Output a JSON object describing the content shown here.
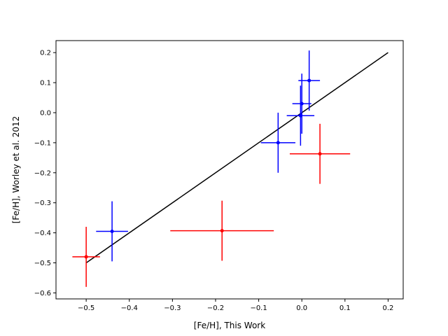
{
  "chart_data": {
    "type": "scatter",
    "title": "",
    "xlabel": "[Fe/H], This Work",
    "ylabel": "[Fe/H], Worley et al. 2012",
    "xlim": [
      -0.57,
      0.235
    ],
    "ylim": [
      -0.62,
      0.24
    ],
    "xticks": [
      -0.5,
      -0.4,
      -0.3,
      -0.2,
      -0.1,
      0.0,
      0.1,
      0.2
    ],
    "xtick_labels": [
      "−0.5",
      "−0.4",
      "−0.3",
      "−0.2",
      "−0.1",
      "0.0",
      "0.1",
      "0.2"
    ],
    "yticks": [
      -0.6,
      -0.5,
      -0.4,
      -0.3,
      -0.2,
      -0.1,
      0.0,
      0.1,
      0.2
    ],
    "ytick_labels": [
      "−0.6",
      "−0.5",
      "−0.4",
      "−0.3",
      "−0.2",
      "−0.1",
      "0.0",
      "0.1",
      "0.2"
    ],
    "grid": false,
    "reference_line": {
      "x": [
        -0.5,
        0.2
      ],
      "y": [
        -0.5,
        0.2
      ],
      "color": "#000000"
    },
    "series": [
      {
        "color": "#0000ff",
        "points": [
          {
            "x": -0.44,
            "y": -0.395,
            "xerr": 0.037,
            "yerr": 0.1
          },
          {
            "x": -0.055,
            "y": -0.1,
            "xerr": 0.04,
            "yerr": 0.1
          },
          {
            "x": -0.003,
            "y": -0.01,
            "xerr": 0.032,
            "yerr": 0.1
          },
          {
            "x": 0.0,
            "y": 0.03,
            "xerr": 0.022,
            "yerr": 0.1
          },
          {
            "x": 0.017,
            "y": 0.107,
            "xerr": 0.025,
            "yerr": 0.1
          }
        ]
      },
      {
        "color": "#ff0000",
        "points": [
          {
            "x": -0.5,
            "y": -0.48,
            "xerr": 0.032,
            "yerr": 0.1
          },
          {
            "x": -0.185,
            "y": -0.393,
            "xerr": 0.12,
            "yerr": 0.1
          },
          {
            "x": 0.042,
            "y": -0.137,
            "xerr": 0.07,
            "yerr": 0.1
          }
        ]
      }
    ]
  }
}
